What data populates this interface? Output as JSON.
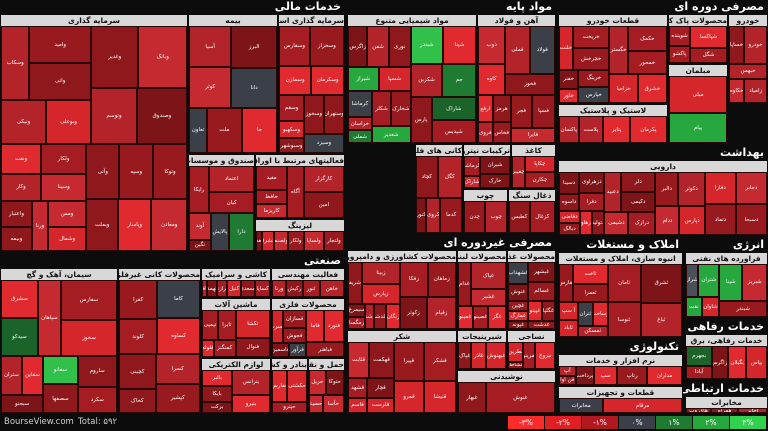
{
  "footer": {
    "brand": "BourseView.com",
    "total": "Total: ۵۹۲",
    "legend": [
      {
        "label": "-۳%",
        "color": "#ff2a2a"
      },
      {
        "label": "-۲%",
        "color": "#e01e24"
      },
      {
        "label": "-۱%",
        "color": "#b2181f"
      },
      {
        "label": "۰%",
        "color": "#3a3f48"
      },
      {
        "label": "۱%",
        "color": "#1f7a32"
      },
      {
        "label": "۲%",
        "color": "#27a83f"
      },
      {
        "label": "۳%",
        "color": "#31d14d"
      }
    ]
  },
  "sectors": [
    {
      "id": "khadamat-mali",
      "title": "خدمات مالی",
      "industries": [
        {
          "id": "sarmaye-gozari",
          "title": "سرمایه گذاری",
          "tiles": [
            "وبانک",
            "وغدیر",
            "وصندوق",
            "وتوسم",
            "وامید",
            "واتی",
            "وسکاب",
            "وبوعلی",
            "ونیکی",
            "وتوکا",
            "وسپه",
            "وآتی",
            "ومعادن",
            "وپاسار",
            "وبملت",
            "ولکار",
            "وسینا",
            "ونفت",
            "وکار",
            "ومس",
            "وشمال",
            "ورنا",
            "واعتبار",
            "وبیمه"
          ],
          "tone": "red"
        },
        {
          "id": "bime",
          "title": "بیمه",
          "tiles": [
            "البرز",
            "دانا",
            "آسیا",
            "کوثر",
            "ما",
            "ملت",
            "تعاون"
          ],
          "tone": "red"
        },
        {
          "id": "sarmaye-gozari-ostani",
          "title": "سرمایه گذاری استانی",
          "tiles": [
            "وسخراز",
            "وسفارس",
            "وسکرمان",
            "وسمازن",
            "وستهران",
            "وسخوز",
            "وسیزد",
            "وسقم",
            "وسکهبو",
            "وسبوشهر"
          ],
          "tone": "red"
        },
        {
          "id": "faaliyat-bahadar",
          "title": "فعالیتهای مرتبط با اوراق بهادار",
          "tiles": [
            "کارگزار",
            "امین",
            "آگاه",
            "مفید",
            "حافظ",
            "کاریزما"
          ],
          "tone": "red"
        },
        {
          "id": "sandogh",
          "title": "صندوق و موسسات اعتباری",
          "tiles": [
            "اعتماد",
            "کیان",
            "رایکا",
            "دارا",
            "پالایش",
            "آوند",
            "نگین"
          ],
          "tone": "mixed"
        },
        {
          "id": "lizing",
          "title": "لیزینگ",
          "tiles": [
            "ولتجار",
            "ولساپا",
            "ولکار",
            "ولصنم",
            "ولشرق",
            "ولغدر"
          ],
          "tone": "red"
        }
      ]
    },
    {
      "id": "mavad-paye",
      "title": "مواد پایه",
      "industries": [
        {
          "id": "mavad-shimiyai",
          "title": "مواد شیمیایی متنوع",
          "tiles": [
            "شپنا",
            "شبندر",
            "جم",
            "شکربن",
            "شاراک",
            "شپدیس",
            "پارس",
            "نوری",
            "شفن",
            "زاگرس",
            "شسپا",
            "شیراز",
            "شخارک",
            "شکلر",
            "شغدیر",
            "کرماشا",
            "خراسان",
            "شملی"
          ],
          "tone": "mixed"
        },
        {
          "id": "ahan-folad",
          "title": "آهن و فولاد",
          "tiles": [
            "فولاد",
            "فملی",
            "فخوز",
            "ذوب",
            "کاوه",
            "فسپا",
            "فجر",
            "فایرا",
            "هرمز",
            "ارفع",
            "فخاس",
            "فروی"
          ],
          "tone": "red"
        },
        {
          "id": "kani-felezi",
          "title": "کانی های فلزی",
          "tiles": [
            "کگل",
            "کچاد",
            "کدما",
            "کروی",
            "کنور"
          ],
          "tone": "mixed"
        },
        {
          "id": "tarkibat-nitrogen",
          "title": "ترکیبات نیتروژن",
          "tiles": [
            "شیران",
            "خارک",
            "کرماشا",
            "شاراک"
          ],
          "tone": "red"
        },
        {
          "id": "kaghaz",
          "title": "کاغذ",
          "tiles": [
            "چکاپا",
            "چکارن",
            "چفیبر"
          ],
          "tone": "red"
        },
        {
          "id": "chob",
          "title": "چوب",
          "tiles": [
            "چوب",
            "چدن"
          ],
          "tone": "red"
        },
        {
          "id": "zoghal",
          "title": "ذغال سنگ",
          "tiles": [
            "کزغال",
            "کطبس"
          ],
          "tone": "red"
        }
      ]
    },
    {
      "id": "masrafi-doreh",
      "title": "مصرفی دوره ای",
      "industries": [
        {
          "id": "ghataat-khodro",
          "title": "قطعات خودرو",
          "tiles": [
            "خکمک",
            "خمحور",
            "خگستر",
            "خشرق",
            "خزامیا",
            "خریخت",
            "خچرخش",
            "خلنت",
            "خرینگ",
            "خپارس",
            "خفنر",
            "خاور"
          ],
          "tone": "red"
        },
        {
          "id": "mahsulat-pak",
          "title": "محصولات پاک کننده",
          "tiles": [
            "شپاکسا",
            "شگل",
            "شوینده",
            "پاکشو"
          ],
          "tone": "red"
        },
        {
          "id": "khodro",
          "title": "خودرو",
          "tiles": [
            "خودرو",
            "خساپا",
            "خبهمن",
            "زامیاد",
            "خکاوه"
          ],
          "tone": "red"
        },
        {
          "id": "lastik",
          "title": "لاستیک و پلاستیک",
          "tiles": [
            "پکرمان",
            "پتایر",
            "پلاست",
            "پاکسان"
          ],
          "tone": "red"
        },
        {
          "id": "mobl",
          "title": "مبلمان",
          "tiles": [
            "مبلی",
            "پیام"
          ],
          "tone": "mixed"
        }
      ]
    },
    {
      "id": "behdasht",
      "title": "بهداشت",
      "industries": [
        {
          "id": "darooei",
          "title": "دارویی",
          "tiles": [
            "دجابر",
            "دفارا",
            "دسبحا",
            "دتماد",
            "دکوثر",
            "دالبر",
            "دپارس",
            "ددام",
            "دلر",
            "دکیمی",
            "دعبید",
            "درازک",
            "دشیمی",
            "دزهراوی",
            "دفرا",
            "دسینا",
            "داسوه",
            "دتولید",
            "درهاور",
            "دقاضی",
            "دبالک"
          ],
          "tone": "red"
        }
      ]
    },
    {
      "id": "amlak",
      "title": "املاک و مستغلات",
      "industries": [
        {
          "id": "anbooh-sazi",
          "title": "انبوه سازی، املاک و مستغلات",
          "tiles": [
            "ثشرق",
            "ثباغ",
            "ثامان",
            "ثنوسا",
            "ثاخت",
            "ثعمرا",
            "ثفارس",
            "وساخت",
            "ثتران",
            "ثمسکن",
            "آ سپ",
            "ثاباد"
          ],
          "tone": "red"
        }
      ]
    },
    {
      "id": "enerzhi",
      "title": "انرژی",
      "industries": [
        {
          "id": "faravarde-naft",
          "title": "فراورده های نفتی",
          "tiles": [
            "شبریز",
            "شپنا",
            "شبندر",
            "شتران",
            "شراز",
            "شاوان",
            "نفت"
          ],
          "tone": "mixed"
        }
      ]
    },
    {
      "id": "khadamat-refahi",
      "title": "خدمات رفاهی",
      "industries": [
        {
          "id": "khadamat-refahi-barq",
          "title": "خدمات رفاهی، برق",
          "tiles": [
            "بپاس",
            "بگیلان",
            "بزاگرس",
            "بجهرم",
            "آبادا"
          ],
          "tone": "mixed"
        }
      ]
    },
    {
      "id": "khadamat-ertebati",
      "title": "خدمات ارتباطی",
      "industries": [
        {
          "id": "mokhaberat",
          "title": "مخابرات",
          "tiles": [
            "اخابر",
            "همراه",
            "های وب"
          ],
          "tone": "red"
        }
      ]
    },
    {
      "id": "sanati",
      "title": "صنعتی",
      "industries": [
        {
          "id": "siman",
          "title": "سیمان، آهک و گچ",
          "tiles": [
            "سفارس",
            "سخوز",
            "سپاهان",
            "سشرق",
            "سیدکو",
            "ساروم",
            "سکرد",
            "سفانو",
            "سصفها",
            "سقاین",
            "ستران",
            "سبجنو"
          ],
          "tone": "mixed"
        },
        {
          "id": "mahsulat-kani",
          "title": "محصولات کانی غیرفلزی",
          "tiles": [
            "کاما",
            "کساوه",
            "کفرا",
            "کلوند",
            "کسرا",
            "کپشیر",
            "کچینی",
            "کخاک"
          ],
          "tone": "red"
        },
        {
          "id": "kashi",
          "title": "کاشی و سرامیک",
          "tiles": [
            "کساپا",
            "کسعدی",
            "کنیل",
            "کرازی",
            "کهمدا",
            "کبافق"
          ],
          "tone": "red"
        },
        {
          "id": "faaliyat-mohandesi",
          "title": "فعالیت مهندسی",
          "tiles": [
            "خاهن",
            "ثنور",
            "رکیش",
            "ورنا"
          ],
          "tone": "red"
        },
        {
          "id": "mashin-alat",
          "title": "ماشین آلات",
          "tiles": [
            "تکشا",
            "فنوال",
            "تایرا",
            "تپمپی",
            "کمنگنز",
            "فلوله"
          ],
          "tone": "red"
        },
        {
          "id": "sakht-felezi",
          "title": "محصولات فلزی",
          "tiles": [
            "فنورد",
            "فاما",
            "فباهنر",
            "فسازان",
            "فجوش",
            "فسرب",
            "فرآور",
            "فاسمین"
          ],
          "tone": "red"
        },
        {
          "id": "lavazem-barqi",
          "title": "لوازم الکتریکی",
          "tiles": [
            "بترانس",
            "بنیرو",
            "بالبر",
            "بایکا",
            "برکت"
          ],
          "tone": "red"
        },
        {
          "id": "bandar",
          "title": "بنادر و کشتیرانی",
          "tiles": [
            "حکشتی",
            "حفارس",
            "حپترو"
          ],
          "tone": "red"
        },
        {
          "id": "haml",
          "title": "حمل و نقل",
          "tiles": [
            "حتوکا",
            "حریل",
            "حآسا",
            "حسینا"
          ],
          "tone": "red"
        }
      ]
    },
    {
      "id": "masrafi-gheyrdore",
      "title": "مصرفی غیردوره ای",
      "industries": [
        {
          "id": "keshavarzi",
          "title": "محصولات کشاورزی و دامپروری",
          "tiles": [
            "زماهان",
            "زفکا",
            "زقیام",
            "زکوثر",
            "زبینا",
            "زپارس",
            "زشریف",
            "زنگان",
            "زگلدشت",
            "زدشت",
            "سیمرغ",
            "زمگسا"
          ],
          "tone": "red"
        },
        {
          "id": "labani",
          "title": "محصولات لبنی",
          "tiles": [
            "غپاک",
            "غشیر",
            "غدام",
            "غگز",
            "غصینو",
            "غمینو"
          ],
          "tone": "red"
        },
        {
          "id": "ghazai",
          "title": "محصولات غذایی",
          "tiles": [
            "غبشهر",
            "غسالم",
            "غشهداب",
            "غنوش",
            "غگلپا",
            "غپینو",
            "غدشت",
            "غچین",
            "غمارگ",
            "غپونه"
          ],
          "tone": "red"
        },
        {
          "id": "shekar",
          "title": "شکر",
          "tiles": [
            "قشکر",
            "قپیرا",
            "قنیشا",
            "قمرو",
            "قهکمت",
            "قثابت",
            "قچار",
            "قلرست",
            "قشهد",
            "قاسم"
          ],
          "tone": "red"
        },
        {
          "id": "shirini",
          "title": "شیرینیجات",
          "tiles": [
            "غبهنوش",
            "غاذر",
            "غپاک"
          ],
          "tone": "red"
        },
        {
          "id": "nasaji",
          "title": "نساجی",
          "tiles": [
            "نبروج",
            "نمرینو",
            "نطرین",
            "نشاط"
          ],
          "tone": "red"
        },
        {
          "id": "noshidani",
          "title": "نوشیدنی",
          "tiles": [
            "غنوش",
            "غبهار"
          ],
          "tone": "red"
        }
      ]
    },
    {
      "id": "teknoloji",
      "title": "تکنولوژی",
      "industries": [
        {
          "id": "narm-afzar",
          "title": "نرم افزار و خدمات",
          "tiles": [
            "مداران",
            "رتاپ",
            "سپ",
            "پرداخت",
            "آپ",
            "فن آوا"
          ],
          "tone": "red"
        },
        {
          "id": "ghataat-tajhizat",
          "title": "قطعات و تجهیزات",
          "tiles": [
            "مرقام",
            "مخابرات"
          ],
          "tone": "red"
        }
      ]
    }
  ]
}
